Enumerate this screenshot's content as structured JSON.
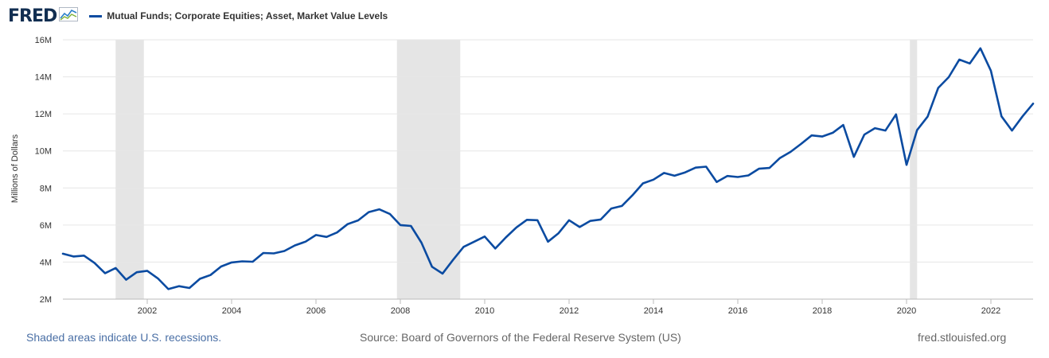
{
  "header": {
    "logo_text": "FRED",
    "logo_icon": "fred-chart-icon",
    "series_legend": "Mutual Funds; Corporate Equities; Asset, Market Value Levels"
  },
  "footer": {
    "recession_note": "Shaded areas indicate U.S. recessions.",
    "source": "Source: Board of Governors of the Federal Reserve System (US)",
    "site": "fred.stlouisfed.org"
  },
  "colors": {
    "line": "#0b4ba1",
    "recession": "#e5e5e5",
    "grid": "#e6e6e6",
    "logo": "#112e51"
  },
  "chart_data": {
    "type": "line",
    "title": "",
    "xlabel": "",
    "ylabel": "Millions of Dollars",
    "xlim": [
      2000.0,
      2023.0
    ],
    "ylim": [
      2000000,
      16000000
    ],
    "y_ticks": [
      2000000,
      4000000,
      6000000,
      8000000,
      10000000,
      12000000,
      14000000,
      16000000
    ],
    "y_tick_labels": [
      "2M",
      "4M",
      "6M",
      "8M",
      "10M",
      "12M",
      "14M",
      "16M"
    ],
    "x_ticks": [
      2002,
      2004,
      2006,
      2008,
      2010,
      2012,
      2014,
      2016,
      2018,
      2020,
      2022
    ],
    "x_tick_labels": [
      "2002",
      "2004",
      "2006",
      "2008",
      "2010",
      "2012",
      "2014",
      "2016",
      "2018",
      "2020",
      "2022"
    ],
    "grid": "horizontal",
    "legend": "top-left",
    "recessions": [
      {
        "start": 2001.25,
        "end": 2001.92
      },
      {
        "start": 2007.92,
        "end": 2009.42
      },
      {
        "start": 2020.08,
        "end": 2020.25
      }
    ],
    "series": [
      {
        "name": "Mutual Funds; Corporate Equities; Asset, Market Value Levels",
        "x": [
          2000.0,
          2000.25,
          2000.5,
          2000.75,
          2001.0,
          2001.25,
          2001.5,
          2001.75,
          2002.0,
          2002.25,
          2002.5,
          2002.75,
          2003.0,
          2003.25,
          2003.5,
          2003.75,
          2004.0,
          2004.25,
          2004.5,
          2004.75,
          2005.0,
          2005.25,
          2005.5,
          2005.75,
          2006.0,
          2006.25,
          2006.5,
          2006.75,
          2007.0,
          2007.25,
          2007.5,
          2007.75,
          2008.0,
          2008.25,
          2008.5,
          2008.75,
          2009.0,
          2009.25,
          2009.5,
          2009.75,
          2010.0,
          2010.25,
          2010.5,
          2010.75,
          2011.0,
          2011.25,
          2011.5,
          2011.75,
          2012.0,
          2012.25,
          2012.5,
          2012.75,
          2013.0,
          2013.25,
          2013.5,
          2013.75,
          2014.0,
          2014.25,
          2014.5,
          2014.75,
          2015.0,
          2015.25,
          2015.5,
          2015.75,
          2016.0,
          2016.25,
          2016.5,
          2016.75,
          2017.0,
          2017.25,
          2017.5,
          2017.75,
          2018.0,
          2018.25,
          2018.5,
          2018.75,
          2019.0,
          2019.25,
          2019.5,
          2019.75,
          2020.0,
          2020.25,
          2020.5,
          2020.75,
          2021.0,
          2021.25,
          2021.5,
          2021.75,
          2022.0,
          2022.25,
          2022.5,
          2022.75,
          2023.0
        ],
        "values": [
          4450000,
          4300000,
          4350000,
          3950000,
          3400000,
          3680000,
          3050000,
          3450000,
          3530000,
          3120000,
          2540000,
          2700000,
          2600000,
          3100000,
          3300000,
          3760000,
          3980000,
          4040000,
          4020000,
          4490000,
          4470000,
          4600000,
          4900000,
          5100000,
          5460000,
          5360000,
          5600000,
          6050000,
          6250000,
          6700000,
          6850000,
          6600000,
          6000000,
          5950000,
          5050000,
          3750000,
          3380000,
          4120000,
          4820000,
          5100000,
          5380000,
          4730000,
          5330000,
          5870000,
          6280000,
          6260000,
          5100000,
          5560000,
          6260000,
          5890000,
          6220000,
          6300000,
          6890000,
          7030000,
          7600000,
          8250000,
          8450000,
          8810000,
          8660000,
          8840000,
          9100000,
          9150000,
          8320000,
          8650000,
          8590000,
          8680000,
          9040000,
          9080000,
          9620000,
          9950000,
          10380000,
          10840000,
          10780000,
          10980000,
          11400000,
          9680000,
          10880000,
          11230000,
          11100000,
          11970000,
          9250000,
          11130000,
          11850000,
          13400000,
          13980000,
          14930000,
          14720000,
          15540000,
          14330000,
          11870000,
          11100000,
          11870000,
          12550000
        ]
      }
    ]
  }
}
